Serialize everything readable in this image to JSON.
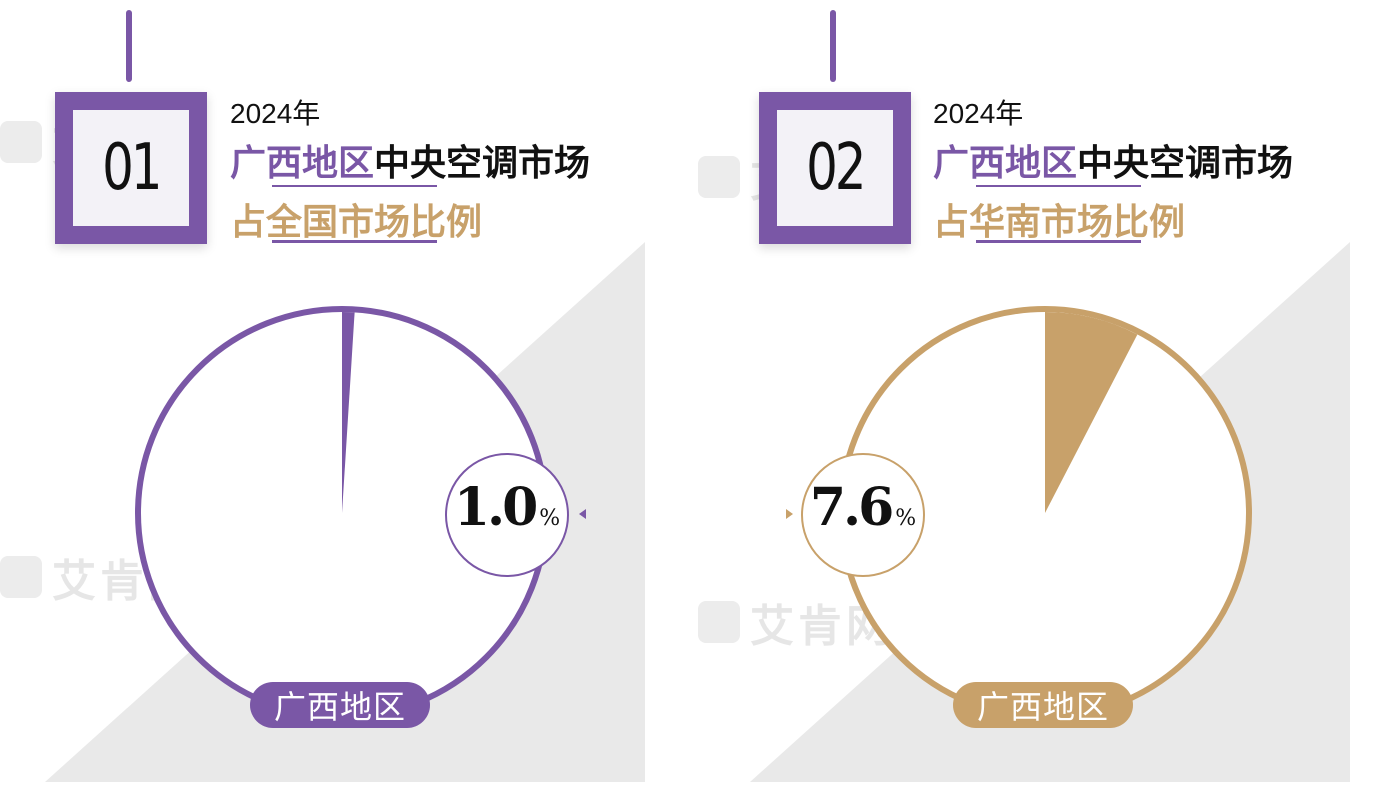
{
  "watermark": {
    "text": "艾肯网"
  },
  "colors": {
    "purple": "#7a57a6",
    "gold": "#c8a16a"
  },
  "chart_data": [
    {
      "type": "pie",
      "index_label": "01",
      "year": "2024年",
      "title_highlight": "广西地区",
      "title_rest": "中央空调市场",
      "subtitle": "占全国市场比例",
      "value": 1.0,
      "value_text": "1.0",
      "unit": "%",
      "segment_label": "广西地区",
      "accent_color": "#7a57a6",
      "subtitle_color": "#c8a16a"
    },
    {
      "type": "pie",
      "index_label": "02",
      "year": "2024年",
      "title_highlight": "广西地区",
      "title_rest": "中央空调市场",
      "subtitle": "占华南市场比例",
      "value": 7.6,
      "value_text": "7.6",
      "unit": "%",
      "segment_label": "广西地区",
      "accent_color": "#c8a16a",
      "subtitle_color": "#c8a16a"
    }
  ]
}
